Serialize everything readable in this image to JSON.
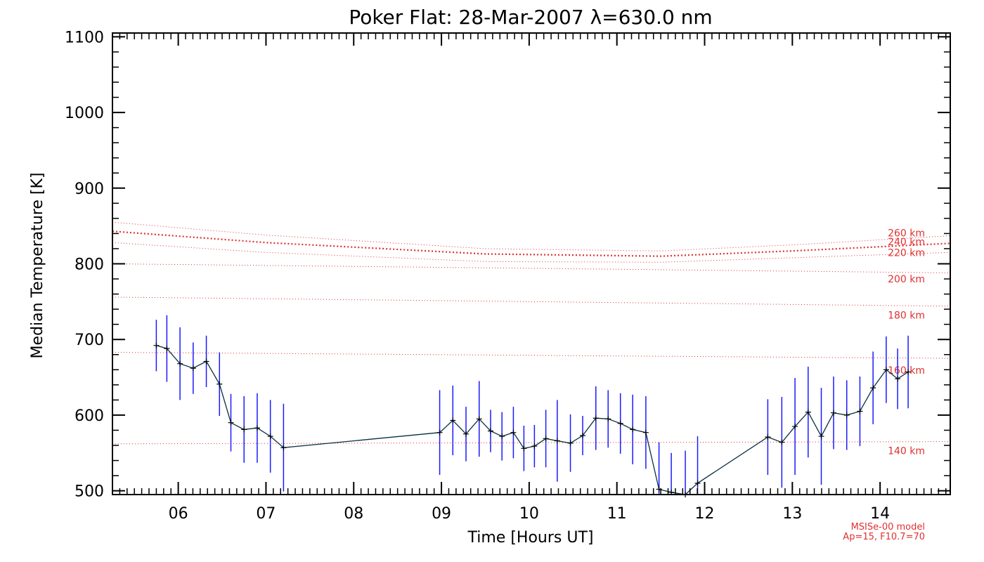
{
  "chart_data": {
    "type": "line",
    "title": "Poker Flat: 28-Mar-2007 λ=630.0 nm",
    "xlabel": "Time [Hours UT]",
    "ylabel": "Median Temperature [K]",
    "xlim": [
      5.25,
      14.8
    ],
    "ylim": [
      495,
      1105
    ],
    "x_ticks": [
      6,
      7,
      8,
      9,
      10,
      11,
      12,
      13,
      14
    ],
    "x_tick_labels": [
      "06",
      "07",
      "08",
      "09",
      "10",
      "11",
      "12",
      "13",
      "14"
    ],
    "y_ticks": [
      500,
      600,
      700,
      800,
      900,
      1000,
      1100
    ],
    "y_tick_labels": [
      "500",
      "600",
      "700",
      "800",
      "900",
      "1000",
      "1100"
    ],
    "series": [
      {
        "name": "Median Temperature",
        "color": "#0a3040",
        "errorbar_color": "#1a1aff",
        "x": [
          5.75,
          5.87,
          6.02,
          6.17,
          6.32,
          6.47,
          6.6,
          6.75,
          6.9,
          7.05,
          7.2,
          8.98,
          9.13,
          9.28,
          9.43,
          9.56,
          9.69,
          9.82,
          9.94,
          10.06,
          10.19,
          10.32,
          10.47,
          10.61,
          10.76,
          10.9,
          11.04,
          11.18,
          11.33,
          11.48,
          11.62,
          11.78,
          11.92,
          12.72,
          12.88,
          13.03,
          13.18,
          13.33,
          13.47,
          13.62,
          13.77,
          13.92,
          14.07,
          14.2,
          14.32
        ],
        "y": [
          692,
          688,
          668,
          662,
          671,
          641,
          590,
          581,
          583,
          572,
          557,
          577,
          593,
          575,
          595,
          579,
          572,
          577,
          556,
          559,
          569,
          566,
          563,
          573,
          596,
          595,
          589,
          581,
          577,
          502,
          498,
          495,
          510,
          571,
          564,
          585,
          604,
          572,
          603,
          600,
          605,
          636,
          660,
          648,
          657
        ],
        "err": [
          34,
          44,
          48,
          34,
          34,
          42,
          38,
          44,
          46,
          48,
          58,
          56,
          46,
          36,
          50,
          28,
          32,
          34,
          30,
          28,
          38,
          54,
          38,
          26,
          42,
          38,
          40,
          46,
          48,
          62,
          52,
          58,
          62,
          50,
          60,
          64,
          60,
          64,
          48,
          46,
          46,
          48,
          44,
          40,
          48
        ]
      }
    ],
    "model_curves": [
      {
        "label": "140 km",
        "x": [
          5.25,
          14.8
        ],
        "y": [
          562,
          565
        ]
      },
      {
        "label": "160 km",
        "x": [
          5.25,
          14.8
        ],
        "y": [
          683,
          675
        ]
      },
      {
        "label": "180 km",
        "x": [
          5.25,
          14.8
        ],
        "y": [
          756,
          744
        ]
      },
      {
        "label": "200 km",
        "x": [
          5.25,
          14.8
        ],
        "y": [
          800,
          788
        ]
      },
      {
        "label": "220 km",
        "x": [
          5.25,
          7.0,
          9.5,
          11.5,
          13.0,
          14.8
        ],
        "y": [
          828,
          815,
          803,
          802,
          808,
          815
        ]
      },
      {
        "label": "240 km",
        "x": [
          5.25,
          7.0,
          9.5,
          11.5,
          13.0,
          14.8
        ],
        "y": [
          843,
          828,
          813,
          810,
          817,
          827
        ]
      },
      {
        "label": "260 km",
        "x": [
          5.25,
          7.0,
          9.5,
          11.5,
          13.0,
          14.8
        ],
        "y": [
          855,
          838,
          820,
          817,
          825,
          837
        ]
      }
    ],
    "model_note_1": "MSISe-00 model",
    "model_note_2": "Ap=15, F10.7=70"
  },
  "colors": {
    "model": "#e03030",
    "errorbar": "#1a1aff",
    "line": "#0a3040",
    "axis": "#000000"
  }
}
